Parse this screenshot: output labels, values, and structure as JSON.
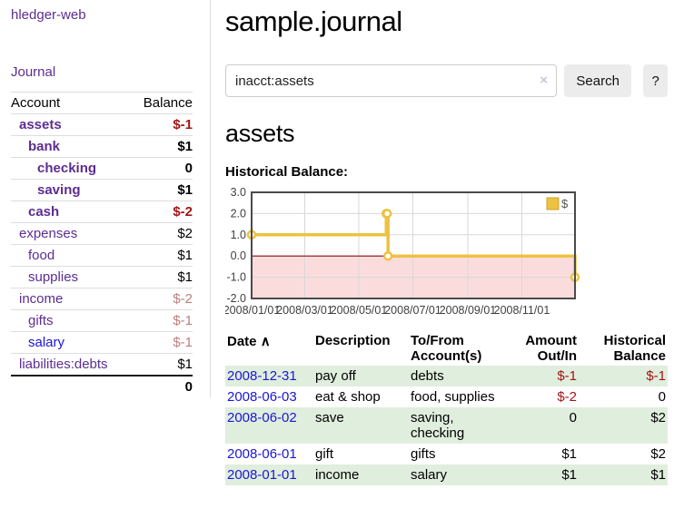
{
  "sidebar": {
    "brand": "hledger-web",
    "journal_link": "Journal",
    "accounts": {
      "header_account": "Account",
      "header_balance": "Balance",
      "rows": [
        {
          "name": "assets",
          "balance": "$-1"
        },
        {
          "name": "bank",
          "balance": "$1"
        },
        {
          "name": "checking",
          "balance": "0"
        },
        {
          "name": "saving",
          "balance": "$1"
        },
        {
          "name": "cash",
          "balance": "$-2"
        },
        {
          "name": "expenses",
          "balance": "$2"
        },
        {
          "name": "food",
          "balance": "$1"
        },
        {
          "name": "supplies",
          "balance": "$1"
        },
        {
          "name": "income",
          "balance": "$-2"
        },
        {
          "name": "gifts",
          "balance": "$-1"
        },
        {
          "name": "salary",
          "balance": "$-1"
        },
        {
          "name": "liabilities:debts",
          "balance": "$1"
        }
      ],
      "total": "0"
    }
  },
  "main": {
    "title": "sample.journal",
    "search": {
      "value": "inacct:assets",
      "clear_icon": "×",
      "button_label": "Search",
      "help_label": "?"
    },
    "account_heading": "assets",
    "register": {
      "sort_icon": "∧",
      "headers": {
        "date": "Date",
        "description": "Description",
        "tofrom": "To/From\nAccount(s)",
        "amount": "Amount\nOut/In",
        "balance": "Historical\nBalance"
      },
      "rows": [
        {
          "date": "2008-12-31",
          "description": "pay off",
          "accounts": "debts",
          "amount": "$-1",
          "balance": "$-1"
        },
        {
          "date": "2008-06-03",
          "description": "eat & shop",
          "accounts": "food, supplies",
          "amount": "$-2",
          "balance": "0"
        },
        {
          "date": "2008-06-02",
          "description": "save",
          "accounts": "saving,\nchecking",
          "amount": "0",
          "balance": "$2"
        },
        {
          "date": "2008-06-01",
          "description": "gift",
          "accounts": "gifts",
          "amount": "$1",
          "balance": "$2"
        },
        {
          "date": "2008-01-01",
          "description": "income",
          "accounts": "salary",
          "amount": "$1",
          "balance": "$1"
        }
      ]
    }
  },
  "chart_data": {
    "type": "line",
    "style": "step-after",
    "title": "Historical Balance:",
    "series": [
      {
        "name": "$",
        "points": [
          {
            "date": "2008-01-01",
            "day": 0,
            "value": 1
          },
          {
            "date": "2008-06-01",
            "day": 152,
            "value": 2
          },
          {
            "date": "2008-06-02",
            "day": 153,
            "value": 2
          },
          {
            "date": "2008-06-03",
            "day": 154,
            "value": 0
          },
          {
            "date": "2008-12-31",
            "day": 365,
            "value": -1
          }
        ]
      }
    ],
    "x_range_days": [
      0,
      365
    ],
    "ylim": [
      -2,
      3
    ],
    "x_ticks": [
      {
        "day": 0,
        "label": "2008/01/01"
      },
      {
        "day": 60,
        "label": "2008/03/01"
      },
      {
        "day": 121,
        "label": "2008/05/01"
      },
      {
        "day": 182,
        "label": "2008/07/01"
      },
      {
        "day": 244,
        "label": "2008/09/01"
      },
      {
        "day": 305,
        "label": "2008/11/01"
      }
    ],
    "y_ticks": [
      3,
      2,
      1,
      0,
      -1,
      -2
    ],
    "grid": true,
    "legend_position": "top-right",
    "colors": {
      "line": "#edc240",
      "marker_fill": "#ffffff",
      "negative_region": "#fbdcdc",
      "zero_line": "#8b1010",
      "gridline": "#d8d8d8",
      "border": "#4a4a4a",
      "tick_text": "#3f3f3f"
    }
  }
}
